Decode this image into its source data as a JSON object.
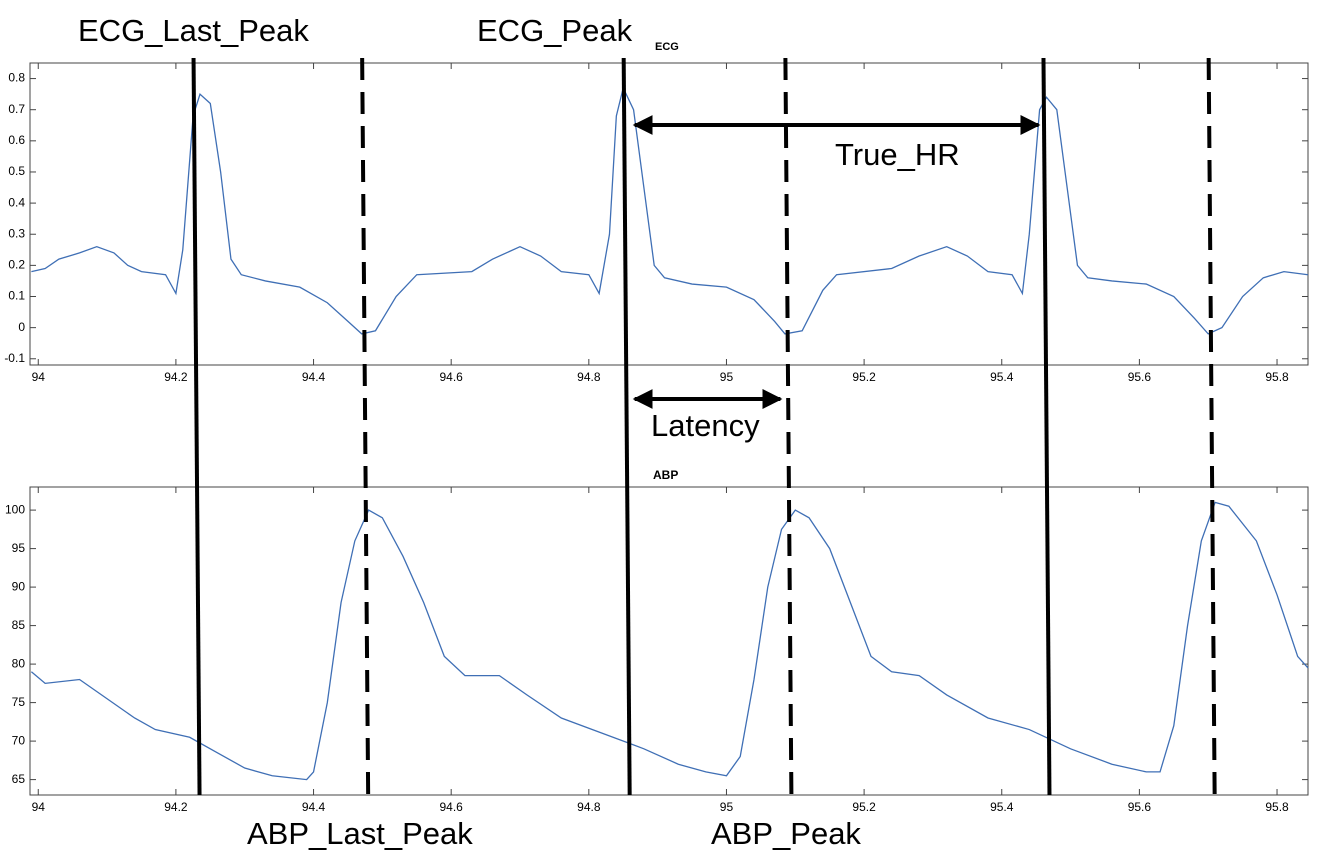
{
  "chart_data": [
    {
      "type": "line",
      "x": [
        93.99,
        94.01,
        94.03,
        94.06,
        94.085,
        94.11,
        94.13,
        94.15,
        94.185,
        94.2,
        94.21,
        94.225,
        94.235,
        94.25,
        94.265,
        94.28,
        94.295,
        94.33,
        94.38,
        94.42,
        94.45,
        94.47,
        94.49,
        94.52,
        94.55,
        94.63,
        94.66,
        94.7,
        94.73,
        94.76,
        94.8,
        94.815,
        94.83,
        94.84,
        94.85,
        94.865,
        94.88,
        94.895,
        94.91,
        94.95,
        95.0,
        95.04,
        95.07,
        95.085,
        95.11,
        95.14,
        95.16,
        95.24,
        95.28,
        95.32,
        95.35,
        95.38,
        95.415,
        95.43,
        95.44,
        95.455,
        95.465,
        95.48,
        95.495,
        95.51,
        95.525,
        95.56,
        95.61,
        95.65,
        95.68,
        95.7,
        95.72,
        95.75,
        95.78,
        95.81,
        95.845
      ],
      "series": [
        {
          "color": "#3f6fb5",
          "values": [
            0.18,
            0.19,
            0.22,
            0.24,
            0.26,
            0.24,
            0.2,
            0.18,
            0.17,
            0.11,
            0.25,
            0.68,
            0.75,
            0.72,
            0.5,
            0.22,
            0.17,
            0.15,
            0.13,
            0.08,
            0.02,
            -0.02,
            -0.01,
            0.1,
            0.17,
            0.18,
            0.22,
            0.26,
            0.23,
            0.18,
            0.17,
            0.11,
            0.3,
            0.68,
            0.77,
            0.7,
            0.45,
            0.2,
            0.16,
            0.14,
            0.13,
            0.09,
            0.02,
            -0.02,
            -0.01,
            0.12,
            0.17,
            0.19,
            0.23,
            0.26,
            0.23,
            0.18,
            0.17,
            0.11,
            0.3,
            0.7,
            0.74,
            0.7,
            0.45,
            0.2,
            0.16,
            0.15,
            0.14,
            0.1,
            0.03,
            -0.02,
            0.0,
            0.1,
            0.16,
            0.18,
            0.17
          ]
        }
      ],
      "xlim": [
        93.988,
        95.845
      ],
      "xticks": [
        94,
        94.2,
        94.4,
        94.6,
        94.8,
        95,
        95.2,
        95.4,
        95.6,
        95.8
      ],
      "ylim": [
        -0.12,
        0.85
      ],
      "yticks": [
        -0.1,
        0,
        0.1,
        0.2,
        0.3,
        0.4,
        0.5,
        0.6,
        0.7,
        0.8
      ]
    },
    {
      "type": "line",
      "title": "ABP",
      "x": [
        93.99,
        94.01,
        94.06,
        94.1,
        94.14,
        94.17,
        94.22,
        94.26,
        94.3,
        94.34,
        94.39,
        94.4,
        94.42,
        94.44,
        94.46,
        94.48,
        94.5,
        94.53,
        94.56,
        94.59,
        94.62,
        94.67,
        94.71,
        94.76,
        94.82,
        94.88,
        94.93,
        94.97,
        95.0,
        95.02,
        95.04,
        95.06,
        95.08,
        95.1,
        95.12,
        95.15,
        95.18,
        95.21,
        95.24,
        95.28,
        95.32,
        95.38,
        95.44,
        95.5,
        95.56,
        95.61,
        95.63,
        95.65,
        95.67,
        95.69,
        95.71,
        95.73,
        95.77,
        95.8,
        95.83,
        95.845
      ],
      "series": [
        {
          "color": "#3f6fb5",
          "values": [
            79,
            77.5,
            78,
            75.5,
            73,
            71.5,
            70.5,
            68.5,
            66.5,
            65.5,
            65,
            66,
            75,
            88,
            96,
            100,
            99,
            94,
            88,
            81,
            78.5,
            78.5,
            76,
            73,
            71,
            69,
            67,
            66,
            65.5,
            68,
            78,
            90,
            97.5,
            100,
            99,
            95,
            88,
            81,
            79,
            78.5,
            76,
            73,
            71.5,
            69,
            67,
            66,
            66,
            72,
            85,
            96,
            101,
            100.5,
            96,
            89,
            81,
            79.5
          ]
        }
      ],
      "xlim": [
        93.988,
        95.845
      ],
      "xticks": [
        94,
        94.2,
        94.4,
        94.6,
        94.8,
        95,
        95.2,
        95.4,
        95.6,
        95.8
      ],
      "ylim": [
        63,
        103
      ],
      "yticks": [
        65,
        70,
        75,
        80,
        85,
        90,
        95,
        100
      ]
    }
  ],
  "annotations": {
    "ecg_last_peak": "ECG_Last_Peak",
    "ecg_peak": "ECG_Peak",
    "ecg_peak_sub": "ECG",
    "true_hr": "True_HR",
    "latency": "Latency",
    "abp_last_peak": "ABP_Last_Peak",
    "abp_peak": "ABP_Peak",
    "solid_lines": [
      94.23,
      94.855,
      95.465
    ],
    "dashed_lines": [
      94.475,
      95.09,
      95.705
    ]
  }
}
